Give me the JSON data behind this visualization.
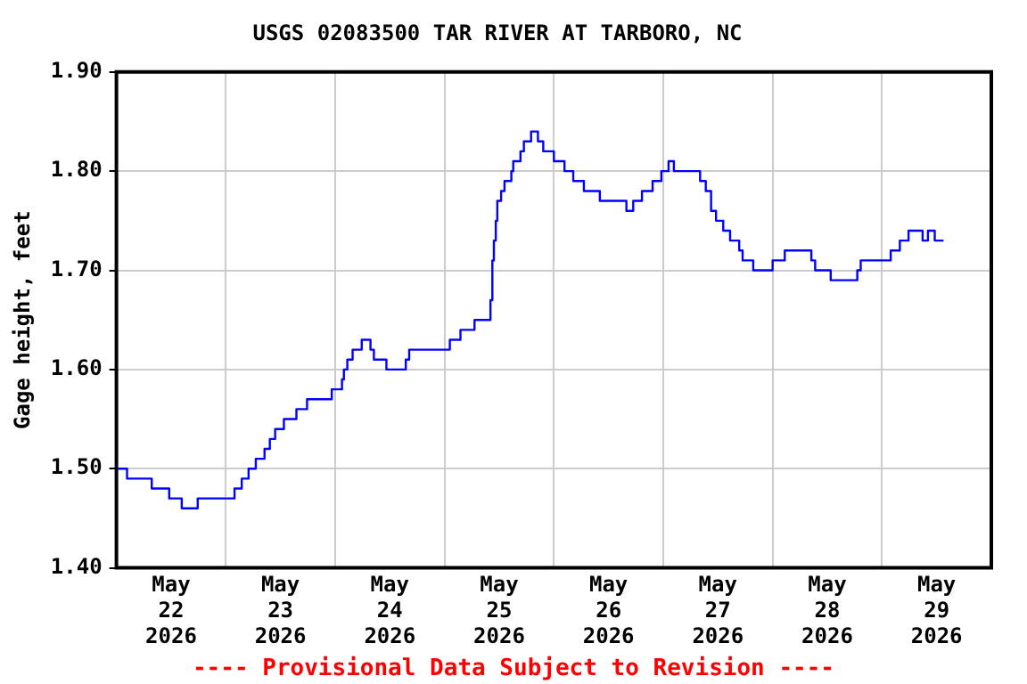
{
  "chart_data": {
    "type": "step",
    "title": "USGS 02083500 TAR RIVER AT TARBORO, NC",
    "ylabel": "Gage height, feet",
    "annotations": [
      "---- Provisional Data Subject to Revision ----"
    ],
    "x": [
      "2026-05-22T00:20",
      "2026-05-22T02:20",
      "2026-05-22T07:45",
      "2026-05-22T11:35",
      "2026-05-22T14:20",
      "2026-05-22T17:50",
      "2026-05-23T01:55",
      "2026-05-23T03:30",
      "2026-05-23T05:00",
      "2026-05-23T06:35",
      "2026-05-23T08:30",
      "2026-05-23T09:40",
      "2026-05-23T10:50",
      "2026-05-23T12:45",
      "2026-05-23T15:30",
      "2026-05-23T17:50",
      "2026-05-23T23:15",
      "2026-05-24T01:30",
      "2026-05-24T01:55",
      "2026-05-24T02:40",
      "2026-05-24T03:50",
      "2026-05-24T05:50",
      "2026-05-24T07:45",
      "2026-05-24T08:30",
      "2026-05-24T11:15",
      "2026-05-24T15:30",
      "2026-05-24T16:15",
      "2026-05-25T01:10",
      "2026-05-25T03:30",
      "2026-05-25T06:35",
      "2026-05-25T10:05",
      "2026-05-25T10:30",
      "2026-05-25T10:50",
      "2026-05-25T11:15",
      "2026-05-25T11:35",
      "2026-05-25T12:25",
      "2026-05-25T13:10",
      "2026-05-25T14:40",
      "2026-05-25T15:05",
      "2026-05-25T16:40",
      "2026-05-25T17:25",
      "2026-05-25T19:00",
      "2026-05-25T20:30",
      "2026-05-25T21:40",
      "2026-05-26T00:00",
      "2026-05-26T02:20",
      "2026-05-26T04:15",
      "2026-05-26T06:35",
      "2026-05-26T10:05",
      "2026-05-26T15:55",
      "2026-05-26T17:25",
      "2026-05-26T19:20",
      "2026-05-26T21:40",
      "2026-05-26T23:35",
      "2026-05-27T01:10",
      "2026-05-27T02:20",
      "2026-05-27T08:05",
      "2026-05-27T09:20",
      "2026-05-27T10:30",
      "2026-05-27T11:35",
      "2026-05-27T13:10",
      "2026-05-27T14:40",
      "2026-05-27T16:40",
      "2026-05-27T17:25",
      "2026-05-27T19:45",
      "2026-05-28T00:00",
      "2026-05-28T02:40",
      "2026-05-28T08:30",
      "2026-05-28T09:20",
      "2026-05-28T12:45",
      "2026-05-28T18:35",
      "2026-05-28T19:20",
      "2026-05-29T01:55",
      "2026-05-29T03:55",
      "2026-05-29T05:50",
      "2026-05-29T08:55",
      "2026-05-29T10:05",
      "2026-05-29T11:35",
      "2026-05-29T13:30"
    ],
    "series": [
      {
        "color": "#0000ff",
        "values": [
          1.5,
          1.5,
          1.49,
          1.48,
          1.47,
          1.46,
          1.47,
          1.48,
          1.49,
          1.5,
          1.51,
          1.52,
          1.53,
          1.54,
          1.55,
          1.56,
          1.57,
          1.58,
          1.59,
          1.6,
          1.61,
          1.62,
          1.63,
          1.62,
          1.61,
          1.6,
          1.61,
          1.62,
          1.63,
          1.64,
          1.65,
          1.67,
          1.71,
          1.73,
          1.75,
          1.77,
          1.78,
          1.79,
          1.8,
          1.81,
          1.82,
          1.83,
          1.84,
          1.83,
          1.82,
          1.81,
          1.8,
          1.79,
          1.78,
          1.77,
          1.76,
          1.77,
          1.78,
          1.79,
          1.8,
          1.81,
          1.8,
          1.79,
          1.78,
          1.76,
          1.75,
          1.74,
          1.73,
          1.72,
          1.71,
          1.7,
          1.71,
          1.72,
          1.71,
          1.7,
          1.69,
          1.7,
          1.71,
          1.72,
          1.73,
          1.74,
          1.73,
          1.74,
          1.73
        ]
      }
    ],
    "xlim": [
      "2026-05-22T00:00",
      "2026-05-30T00:00"
    ],
    "xticks": [
      {
        "value": "2026-05-22T12:00",
        "label": "May 22 2026"
      },
      {
        "value": "2026-05-23T00:00",
        "label": null
      },
      {
        "value": "2026-05-23T12:00",
        "label": "May 23 2026"
      },
      {
        "value": "2026-05-24T00:00",
        "label": null
      },
      {
        "value": "2026-05-24T12:00",
        "label": "May 24 2026"
      },
      {
        "value": "2026-05-25T00:00",
        "label": null
      },
      {
        "value": "2026-05-25T12:00",
        "label": "May 25 2026"
      },
      {
        "value": "2026-05-26T00:00",
        "label": null
      },
      {
        "value": "2026-05-26T12:00",
        "label": "May 26 2026"
      },
      {
        "value": "2026-05-27T00:00",
        "label": null
      },
      {
        "value": "2026-05-27T12:00",
        "label": "May 27 2026"
      },
      {
        "value": "2026-05-28T00:00",
        "label": null
      },
      {
        "value": "2026-05-28T12:00",
        "label": "May 28 2026"
      },
      {
        "value": "2026-05-29T00:00",
        "label": null
      },
      {
        "value": "2026-05-29T12:00",
        "label": "May 29 2026"
      },
      {
        "value": "2026-05-30T00:00",
        "label": null
      }
    ],
    "ylim": [
      1.4,
      1.9
    ],
    "yticks": [
      {
        "value": 1.4,
        "label": "1.40"
      },
      {
        "value": 1.5,
        "label": "1.50"
      },
      {
        "value": 1.6,
        "label": "1.60"
      },
      {
        "value": 1.7,
        "label": "1.70"
      },
      {
        "value": 1.8,
        "label": "1.80"
      },
      {
        "value": 1.9,
        "label": "1.90"
      }
    ],
    "grid": true,
    "legend": false
  }
}
